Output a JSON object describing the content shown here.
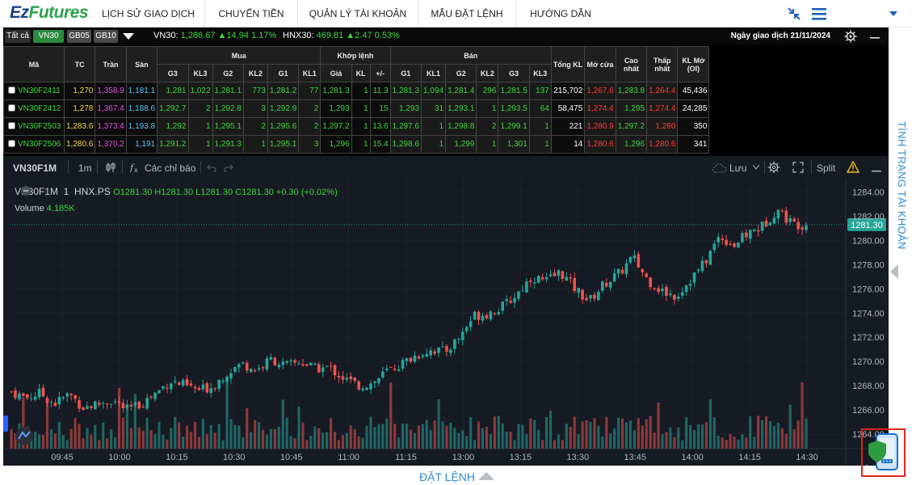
{
  "brand": {
    "part1": "Ez",
    "part2": "Futures"
  },
  "nav": {
    "items": [
      "LỊCH SỬ GIAO DỊCH",
      "CHUYỂN TIỀN",
      "QUẢN LÝ TÀI KHOẢN",
      "MẪU ĐẶT LỆNH",
      "HƯỚNG DẪN"
    ]
  },
  "market": {
    "chips": [
      "Tất cả",
      "VN30",
      "GB05",
      "GB10"
    ],
    "vn30": {
      "name": "VN30:",
      "value": "1,286.67 ▲14.94 1.17%"
    },
    "hnx30": {
      "name": "HNX30:",
      "value": "469.81 ▲2.47 0.53%"
    },
    "trade_date": "Ngày giao dịch 21/11/2024"
  },
  "table": {
    "headers": {
      "ma": "Mã",
      "tc": "TC",
      "tran": "Trần",
      "san": "Sàn",
      "mua": "Mua",
      "khop": "Khớp lệnh",
      "ban": "Bán",
      "tongkl": "Tổng KL",
      "mocua": "Mở cửa",
      "caonhat": "Cao nhất",
      "thapnhat": "Thấp nhất",
      "klmo": "KL Mở (OI)"
    },
    "subheaders": [
      "G3",
      "KL3",
      "G2",
      "KL2",
      "G1",
      "KL1",
      "Giá",
      "KL",
      "+/-",
      "G1",
      "KL1",
      "G2",
      "KL2",
      "G3",
      "KL3"
    ],
    "rows": [
      {
        "sym": "VN30F2411",
        "tc": "1,270",
        "tran": "1,358.9",
        "san": "1,181.1",
        "bg3": "1,281",
        "bkl3": "1,022",
        "bg2": "1,281.1",
        "bkl2": "773",
        "bg1": "1,281.2",
        "bkl1": "77",
        "price": "1,281.3",
        "kl": "1",
        "chg": "11.3",
        "sg1": "1,281.3",
        "skl1": "1,094",
        "sg2": "1,281.4",
        "skl2": "296",
        "sg3": "1,281.5",
        "skl3": "137",
        "total": "215,702",
        "open": "1,267.6",
        "high": "1,283.8",
        "low": "1,264.4",
        "oi": "45,436"
      },
      {
        "sym": "VN30F2412",
        "tc": "1,278",
        "tran": "1,367.4",
        "san": "1,188.6",
        "bg3": "1,292.7",
        "bkl3": "2",
        "bg2": "1,292.8",
        "bkl2": "3",
        "bg1": "1,292.9",
        "bkl1": "2",
        "price": "1,293",
        "kl": "1",
        "chg": "15",
        "sg1": "1,293",
        "skl1": "31",
        "sg2": "1,293.1",
        "skl2": "1",
        "sg3": "1,293.5",
        "skl3": "64",
        "total": "58,475",
        "open": "1,274.4",
        "high": "1,295",
        "low": "1,274.4",
        "oi": "24,285"
      },
      {
        "sym": "VN30F2503",
        "tc": "1,283.6",
        "tran": "1,373.4",
        "san": "1,193.8",
        "bg3": "1,292",
        "bkl3": "1",
        "bg2": "1,295.1",
        "bkl2": "2",
        "bg1": "1,295.6",
        "bkl1": "2",
        "price": "1,297.2",
        "kl": "1",
        "chg": "13.6",
        "sg1": "1,297.6",
        "skl1": "1",
        "sg2": "1,298.8",
        "skl2": "2",
        "sg3": "1,299.1",
        "skl3": "1",
        "total": "221",
        "open": "1,280.9",
        "high": "1,297.2",
        "low": "1,280",
        "oi": "350"
      },
      {
        "sym": "VN30F2506",
        "tc": "1,280.6",
        "tran": "1,370.2",
        "san": "1,191",
        "bg3": "1,291.2",
        "bkl3": "1",
        "bg2": "1,291.3",
        "bkl2": "1",
        "bg1": "1,295.1",
        "bkl1": "3",
        "price": "1,296",
        "kl": "1",
        "chg": "15.4",
        "sg1": "1,298.6",
        "skl1": "1",
        "sg2": "1,299",
        "skl2": "1",
        "sg3": "1,301",
        "skl3": "1",
        "total": "14",
        "open": "1,280.6",
        "high": "1,296",
        "low": "1,280.6",
        "oi": "341"
      }
    ]
  },
  "chart_toolbar": {
    "symbol": "VN30F1M",
    "interval": "1m",
    "indicators": "Các chỉ báo",
    "save": "Lưu",
    "split": "Split"
  },
  "chart_legend": {
    "title": "VN30F1M  1  HNX.PS",
    "ohlc": "O1281.30 H1281.30 L1281.30 C1281.30 +0.30 (+0.02%)",
    "volume_label": "Volume",
    "volume_value": "4.185K"
  },
  "chart_data": {
    "type": "candlestick",
    "symbol": "VN30F1M",
    "x_ticks": [
      "09:45",
      "10:00",
      "10:15",
      "10:30",
      "10:45",
      "11:00",
      "11:15",
      "13:00",
      "13:15",
      "13:30",
      "13:45",
      "14:00",
      "14:15",
      "14:30"
    ],
    "y_ticks": [
      1264,
      1266,
      1268,
      1270,
      1272,
      1274,
      1276,
      1278,
      1280,
      1282,
      1284
    ],
    "y_tick_labels": [
      "1264.00",
      "1266.00",
      "1268.00",
      "1270.00",
      "1272.00",
      "1274.00",
      "1276.00",
      "1278.00",
      "1280.00",
      "1282.00",
      "1284.00"
    ],
    "ylim": [
      1262.8,
      1285.1
    ],
    "last_price": 1281.3,
    "last_price_label": "1281.30",
    "close_path": [
      1267.5,
      1267.0,
      1267.4,
      1266.5,
      1267.3,
      1266.2,
      1266.5,
      1266.8,
      1266.0,
      1266.5,
      1267.4,
      1268.4,
      1268.0,
      1267.6,
      1268.0,
      1269.2,
      1269.8,
      1269.3,
      1270.2,
      1269.6,
      1270.0,
      1269.4,
      1269.5,
      1268.6,
      1268.0,
      1268.2,
      1269.2,
      1269.8,
      1270.5,
      1271.0,
      1270.8,
      1272.0,
      1273.8,
      1274.0,
      1274.5,
      1275.6,
      1277.0,
      1276.6,
      1277.4,
      1276.0,
      1275.0,
      1276.4,
      1277.2,
      1278.6,
      1276.8,
      1275.8,
      1275.4,
      1276.8,
      1278.2,
      1280.4,
      1279.6,
      1280.6,
      1281.2,
      1282.6,
      1281.4,
      1281.3
    ],
    "volume_max_visible": 12000
  },
  "side": {
    "account_status": "TÌNH TRẠNG TÀI KHOẢN"
  },
  "bottom": {
    "order": "ĐẶT LỆNH"
  },
  "colors": {
    "up": "#26a69a",
    "down": "#ef5350",
    "table_up": "#3fd63f",
    "table_down": "#ff3b3b",
    "accent": "#2e8bd0"
  }
}
